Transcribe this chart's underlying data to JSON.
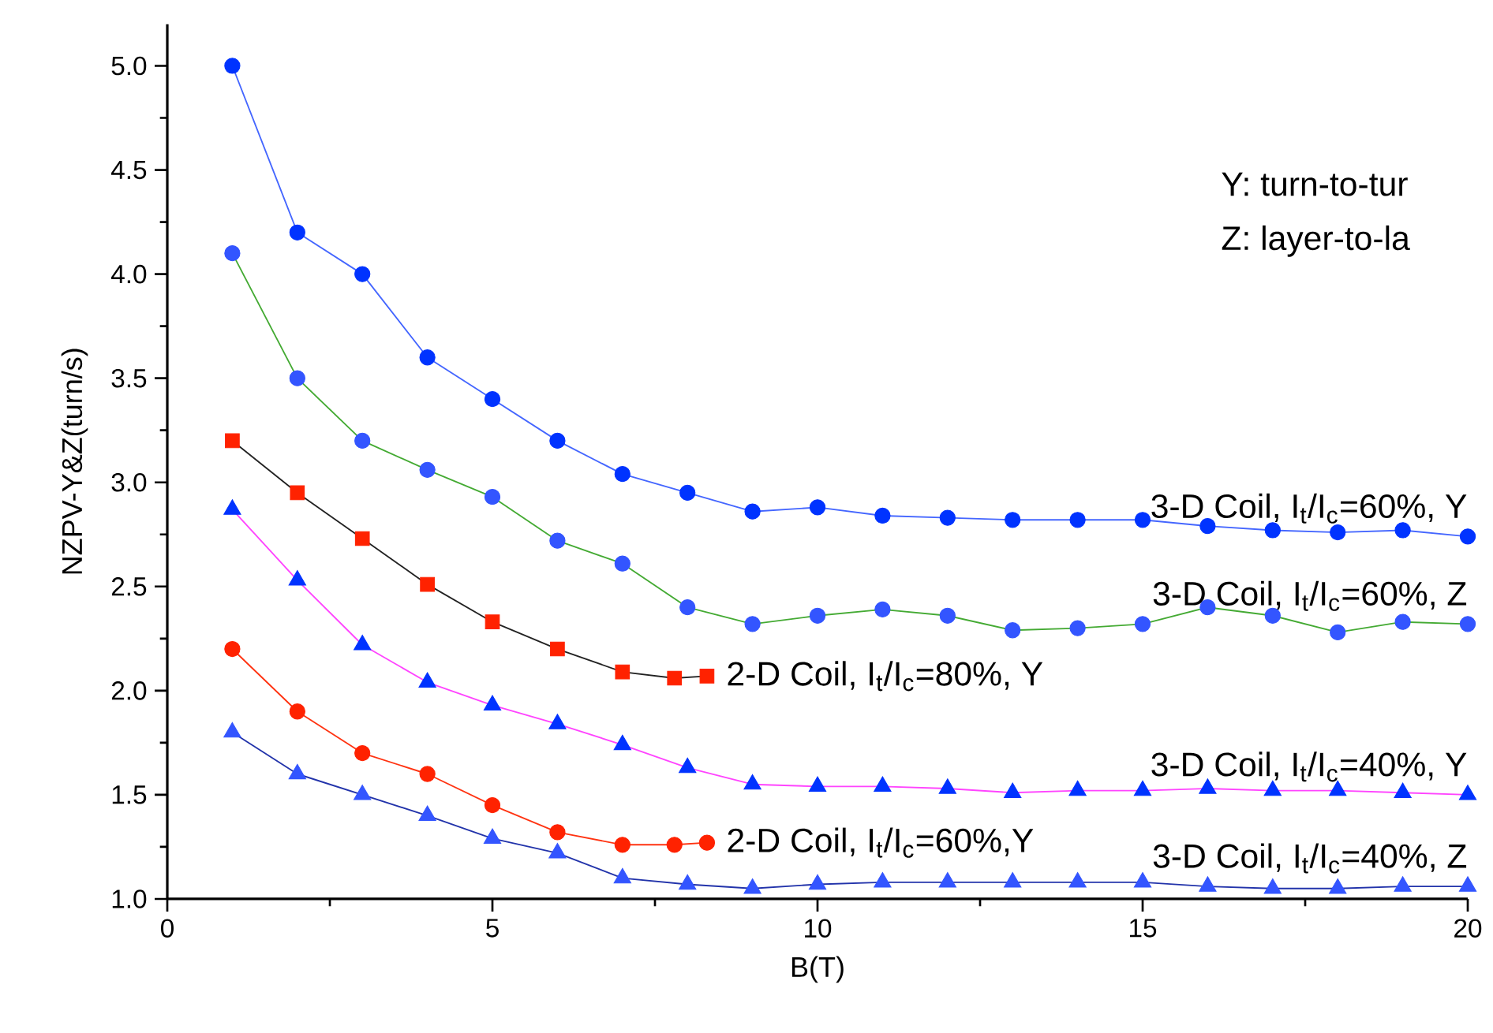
{
  "chart_data": {
    "type": "line",
    "xlabel": "B(T)",
    "ylabel": "NZPV-Y&Z(turn/s)",
    "xlim": [
      0,
      20
    ],
    "ylim": [
      1.0,
      5.2
    ],
    "xticks": [
      0,
      5,
      10,
      15,
      20
    ],
    "yticks": [
      {
        "value": 1.0,
        "label": "1.0"
      },
      1.5,
      {
        "value": 2.0,
        "label": "2.0"
      },
      2.5,
      {
        "value": 3.0,
        "label": "3.0"
      },
      3.5,
      {
        "value": 4.0,
        "label": "4.0"
      },
      4.5,
      {
        "value": 5.0,
        "label": "5.0"
      }
    ],
    "grid": false,
    "legend": false,
    "line_style": "solid",
    "series": [
      {
        "name": "3-D Coil, I$_{t}$/I$_{c}$=60%, Y",
        "color": "#4466ff",
        "colors": [
          "#0033ff",
          "#0033ff",
          "#0033ff",
          "#0033ff",
          "#0033ff",
          "#0033ff",
          "#0033ff",
          "#0033ff",
          "#0033ff",
          "#0033ff",
          "#0033ff",
          "#0033ff",
          "#0033ff",
          "#0033ff",
          "#0033ff",
          "#0033ff",
          "#0033ff",
          "#0033ff",
          "#0033ff",
          "#0033ff"
        ],
        "marker": "circle",
        "x": [
          1,
          2,
          3,
          4,
          5,
          6,
          7,
          8,
          9,
          10,
          11,
          12,
          13,
          14,
          15,
          16,
          17,
          18,
          19,
          20
        ],
        "values": [
          5.0,
          4.2,
          4.0,
          3.6,
          3.4,
          3.2,
          3.04,
          2.95,
          2.86,
          2.88,
          2.84,
          2.83,
          2.82,
          2.82,
          2.82,
          2.79,
          2.77,
          2.76,
          2.77,
          2.74
        ]
      },
      {
        "name": "3-D Coil, I$_{t}$/I$_{c}$=60%, Z",
        "color": "#44aa33",
        "colors": [
          "#3355ff",
          "#3355ff",
          "#3355ff",
          "#3355ff",
          "#3355ff",
          "#3355ff",
          "#3355ff",
          "#3355ff",
          "#3355ff",
          "#3355ff",
          "#3355ff",
          "#3355ff",
          "#3355ff",
          "#3355ff",
          "#3355ff",
          "#3355ff",
          "#3355ff",
          "#3355ff",
          "#3355ff",
          "#3355ff"
        ],
        "marker": "circle",
        "x": [
          1,
          2,
          3,
          4,
          5,
          6,
          7,
          8,
          9,
          10,
          11,
          12,
          13,
          14,
          15,
          16,
          17,
          18,
          19,
          20
        ],
        "values": [
          4.1,
          3.5,
          3.2,
          3.06,
          2.93,
          2.72,
          2.61,
          2.4,
          2.32,
          2.36,
          2.39,
          2.36,
          2.29,
          2.3,
          2.32,
          2.4,
          2.36,
          2.28,
          2.33,
          2.32
        ]
      },
      {
        "name": "2-D Coil, I$_{t}$/I$_{c}$=80%, Y",
        "color": "#222222",
        "colors": [
          "#ff2200",
          "#ff2200",
          "#ff2200",
          "#ff2200",
          "#ff2200",
          "#ff2200",
          "#ff2200",
          "#ff2200",
          "#ff2200"
        ],
        "marker": "square",
        "x": [
          1,
          2,
          3,
          4,
          5,
          6,
          7,
          7.8,
          8.3
        ],
        "values": [
          3.2,
          2.95,
          2.73,
          2.51,
          2.33,
          2.2,
          2.09,
          2.06,
          2.07
        ]
      },
      {
        "name": "3-D Coil, I$_{t}$/I$_{c}$=40%, Y",
        "color": "#ff44ff",
        "colors": [
          "#0033ff",
          "#0033ff",
          "#0033ff",
          "#0033ff",
          "#0033ff",
          "#0033ff",
          "#0033ff",
          "#0033ff",
          "#0033ff",
          "#0033ff",
          "#0033ff",
          "#0033ff",
          "#0033ff",
          "#0033ff",
          "#0033ff",
          "#0033ff",
          "#0033ff",
          "#0033ff",
          "#0033ff",
          "#0033ff"
        ],
        "marker": "triangle",
        "x": [
          1,
          2,
          3,
          4,
          5,
          6,
          7,
          8,
          9,
          10,
          11,
          12,
          13,
          14,
          15,
          16,
          17,
          18,
          19,
          20
        ],
        "values": [
          2.87,
          2.53,
          2.22,
          2.04,
          1.93,
          1.84,
          1.74,
          1.63,
          1.55,
          1.54,
          1.54,
          1.53,
          1.51,
          1.52,
          1.52,
          1.53,
          1.52,
          1.52,
          1.51,
          1.5
        ]
      },
      {
        "name": "2-D Coil, I$_{t}$/I$_{c}$=60%,Y",
        "color": "#ff3311",
        "colors": [
          "#ff2200",
          "#ff2200",
          "#ff2200",
          "#ff2200",
          "#ff2200",
          "#ff2200",
          "#ff2200",
          "#ff2200",
          "#ff2200"
        ],
        "marker": "circle",
        "x": [
          1,
          2,
          3,
          4,
          5,
          6,
          7,
          7.8,
          8.3
        ],
        "values": [
          2.2,
          1.9,
          1.7,
          1.6,
          1.45,
          1.32,
          1.26,
          1.26,
          1.27
        ]
      },
      {
        "name": "3-D Coil, I$_{t}$/I$_{c}$=40%, Z",
        "color": "#2233aa",
        "colors": [
          "#3355ff",
          "#3355ff",
          "#3355ff",
          "#3355ff",
          "#3355ff",
          "#3355ff",
          "#3355ff",
          "#3355ff",
          "#3355ff",
          "#3355ff",
          "#3355ff",
          "#3355ff",
          "#3355ff",
          "#3355ff",
          "#3355ff",
          "#3355ff",
          "#3355ff",
          "#3355ff",
          "#3355ff",
          "#3355ff"
        ],
        "marker": "triangle",
        "x": [
          1,
          2,
          3,
          4,
          5,
          6,
          7,
          8,
          9,
          10,
          11,
          12,
          13,
          14,
          15,
          16,
          17,
          18,
          19,
          20
        ],
        "values": [
          1.8,
          1.6,
          1.5,
          1.4,
          1.29,
          1.22,
          1.1,
          1.07,
          1.05,
          1.07,
          1.08,
          1.08,
          1.08,
          1.08,
          1.08,
          1.06,
          1.05,
          1.05,
          1.06,
          1.06
        ]
      }
    ],
    "annotations": [
      "Y: turn-to-tur",
      "Z: layer-to-la"
    ]
  }
}
